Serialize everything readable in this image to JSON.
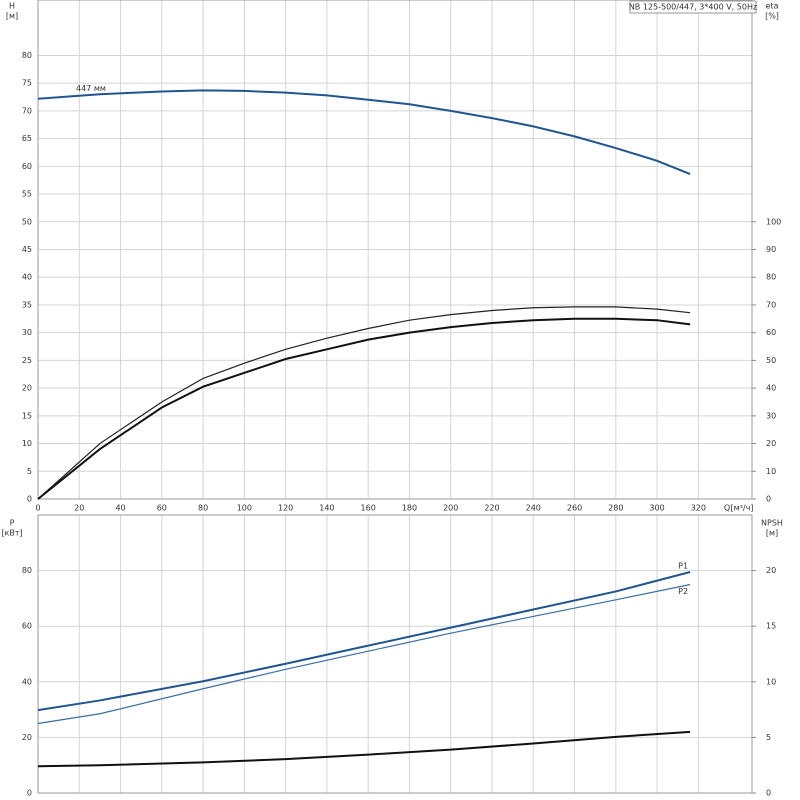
{
  "chart_data": [
    {
      "type": "line",
      "title": "NB 125-500/447, 3*400 V, 50Hz",
      "y_label": "H",
      "y_unit": "[м]",
      "y2_label": "eta",
      "y2_unit": "[%]",
      "x_label": "Q",
      "x_unit": "[м³/ч]",
      "annotation": "447 мм",
      "x": [
        0,
        30,
        60,
        80,
        100,
        120,
        140,
        160,
        180,
        200,
        220,
        240,
        260,
        280,
        300,
        316
      ],
      "xlim": [
        0,
        346
      ],
      "xticks": [
        0,
        20,
        40,
        60,
        80,
        100,
        120,
        140,
        160,
        180,
        200,
        220,
        240,
        260,
        280,
        300,
        320
      ],
      "ylim": [
        0,
        90
      ],
      "yticks": [
        0,
        5,
        10,
        15,
        20,
        25,
        30,
        35,
        40,
        45,
        50,
        55,
        60,
        65,
        70,
        75,
        80
      ],
      "y2lim": [
        0,
        180
      ],
      "y2ticks": [
        0,
        10,
        20,
        30,
        40,
        50,
        60,
        70,
        80,
        90,
        100
      ],
      "grid": true,
      "series": [
        {
          "color": "#1f5592",
          "width": 2,
          "values": [
            72.2,
            73.0,
            73.5,
            73.7,
            73.6,
            73.3,
            72.8,
            72.0,
            71.2,
            70.0,
            68.7,
            67.2,
            65.4,
            63.3,
            61.0,
            58.6
          ]
        },
        {
          "color": "#222222",
          "width": 1.2,
          "axis": "y2",
          "values": [
            0,
            20,
            35,
            43.5,
            49,
            54,
            58,
            61.5,
            64.5,
            66.5,
            68,
            69,
            69.3,
            69.3,
            68.5,
            67.2
          ]
        },
        {
          "color": "#111111",
          "width": 2,
          "axis": "y2",
          "values": [
            0,
            18,
            33,
            40.5,
            45.5,
            50.5,
            54,
            57.5,
            60,
            62,
            63.5,
            64.5,
            65,
            65,
            64.5,
            63
          ]
        }
      ]
    },
    {
      "type": "line",
      "y_label": "P",
      "y_unit": "[кВт]",
      "y2_label": "NPSH",
      "y2_unit": "[м]",
      "x": [
        0,
        30,
        80,
        120,
        160,
        200,
        240,
        280,
        316
      ],
      "xlim": [
        0,
        346
      ],
      "ylim": [
        0,
        100
      ],
      "yticks": [
        0,
        20,
        40,
        60,
        80
      ],
      "y2lim": [
        0,
        25
      ],
      "y2ticks": [
        0,
        5,
        10,
        15,
        20
      ],
      "grid": true,
      "series": [
        {
          "name": "P1",
          "color": "#1f5592",
          "width": 2,
          "values": [
            29.8,
            33.3,
            40.2,
            46.5,
            53,
            59.5,
            66,
            72.5,
            79.5
          ]
        },
        {
          "name": "P2",
          "color": "#3a6ea5",
          "width": 1.2,
          "values": [
            25,
            28.5,
            37.5,
            44.5,
            51,
            57.5,
            63.5,
            69.5,
            75
          ]
        },
        {
          "color": "#111111",
          "width": 2,
          "axis": "y2",
          "values": [
            2.4,
            2.5,
            2.75,
            3.05,
            3.45,
            3.9,
            4.45,
            5.05,
            5.5
          ]
        }
      ]
    }
  ]
}
